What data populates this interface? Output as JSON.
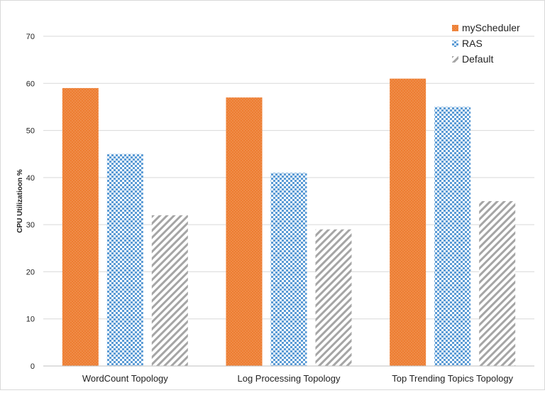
{
  "chart_data": {
    "type": "bar",
    "title": "",
    "xlabel": "",
    "ylabel": "CPU Utilizatioon %",
    "ylim": [
      0,
      70
    ],
    "yticks": [
      0,
      10,
      20,
      30,
      40,
      50,
      60,
      70
    ],
    "grid": true,
    "legend_position": "top-right",
    "categories": [
      "WordCount Topology",
      "Log Processing Topology",
      "Top Trending Topics Topology"
    ],
    "series": [
      {
        "name": "myScheduler",
        "values": [
          59,
          57,
          61
        ],
        "color": "#ed7d31",
        "pattern": "dots"
      },
      {
        "name": "RAS",
        "values": [
          45,
          41,
          55
        ],
        "color": "#5b9bd5",
        "pattern": "checker"
      },
      {
        "name": "Default",
        "values": [
          32,
          29,
          35
        ],
        "color": "#a5a5a5",
        "pattern": "diagonal"
      }
    ]
  }
}
